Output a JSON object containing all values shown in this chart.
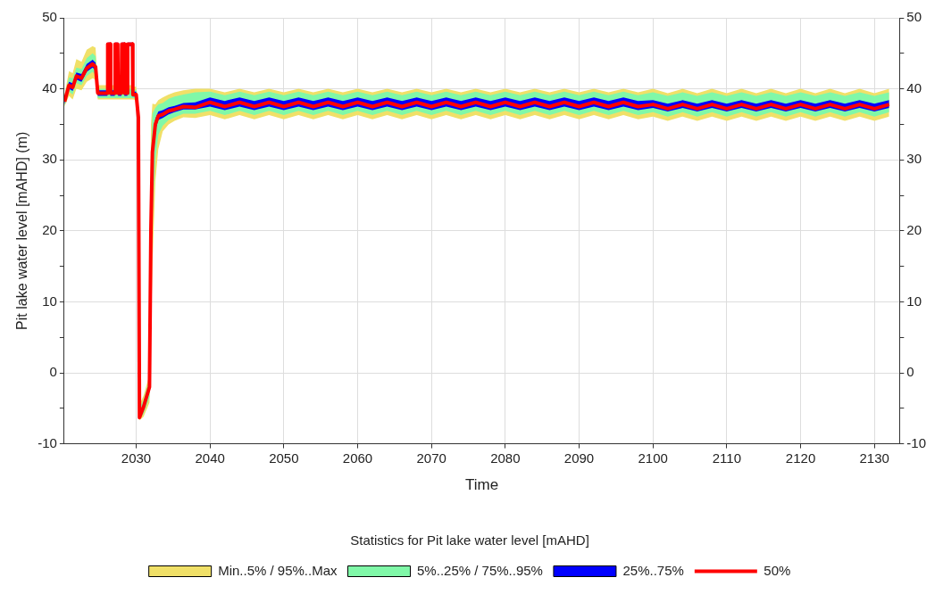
{
  "chart_data": {
    "type": "line",
    "xlabel": "Time",
    "ylabel": "Pit lake water level [mAHD] (m)",
    "legend_title": "Statistics for Pit lake water level [mAHD]",
    "legend": "bottom",
    "grid": true,
    "marker": "none",
    "xlim": [
      2020.25,
      2133.4
    ],
    "xticks": [
      2030,
      2040,
      2050,
      2060,
      2070,
      2080,
      2090,
      2100,
      2110,
      2120,
      2130
    ],
    "ylim": [
      -10,
      50
    ],
    "yticks": [
      -10,
      {
        "value": -5,
        "label": null
      },
      0,
      {
        "value": 5,
        "label": null
      },
      10,
      {
        "value": 15,
        "label": null
      },
      20,
      {
        "value": 25,
        "label": null
      },
      30,
      {
        "value": 35,
        "label": null
      },
      40,
      {
        "value": 45,
        "label": null
      },
      50
    ],
    "y2lim": [
      -10,
      50
    ],
    "y2ticks": [
      -10,
      {
        "value": -5,
        "label": null
      },
      0,
      {
        "value": 5,
        "label": null
      },
      10,
      {
        "value": 15,
        "label": null
      },
      20,
      {
        "value": 25,
        "label": null
      },
      30,
      {
        "value": 35,
        "label": null
      },
      40,
      {
        "value": 45,
        "label": null
      },
      50
    ],
    "x": [
      2020.3,
      2020.9,
      2021.4,
      2021.9,
      2022.6,
      2023.3,
      2024.1,
      2024.5,
      2024.8,
      2025.5,
      2026.1,
      2026.15,
      2026.5,
      2026.55,
      2027.1,
      2027.15,
      2027.5,
      2027.55,
      2028.0,
      2028.05,
      2028.4,
      2028.45,
      2028.8,
      2028.85,
      2029.5,
      2029.55,
      2030.0,
      2030.3,
      2030.45,
      2031.0,
      2031.8,
      2032.0,
      2032.2,
      2032.6,
      2033.0,
      2033.6,
      2034.4,
      2035.2,
      2036.4,
      2038.0,
      2040,
      2042,
      2044,
      2046,
      2048,
      2050,
      2052,
      2054,
      2056,
      2058,
      2060,
      2062,
      2064,
      2066,
      2068,
      2070,
      2072,
      2074,
      2076,
      2078,
      2080,
      2082,
      2084,
      2086,
      2088,
      2090,
      2092,
      2094,
      2096,
      2098,
      2100,
      2102,
      2104,
      2106,
      2108,
      2110,
      2112,
      2114,
      2116,
      2118,
      2120,
      2122,
      2124,
      2126,
      2128,
      2130,
      2132
    ],
    "series": [
      {
        "name": "Min..5% / 95%..Max",
        "type": "area",
        "color": "#f0e068",
        "values": [
          null,
          null,
          null,
          null,
          null,
          null,
          null,
          null,
          null,
          null,
          null,
          null,
          null,
          null,
          null,
          null,
          null,
          null,
          null,
          null,
          null,
          null,
          null,
          null,
          null,
          null,
          null,
          null,
          null,
          null,
          null,
          null,
          null,
          null,
          null,
          null,
          null,
          null,
          null,
          null,
          null,
          null,
          null,
          null,
          null,
          null,
          null,
          null,
          null,
          null,
          null,
          null,
          null,
          null,
          null,
          null,
          null,
          null,
          null,
          null,
          null,
          null,
          null,
          null,
          null,
          null,
          null,
          null,
          null,
          null,
          null,
          null,
          null,
          null,
          null,
          null,
          null,
          null,
          null,
          null,
          null,
          null,
          null,
          null,
          null,
          null,
          null
        ],
        "lower": [
          37.5,
          39.0,
          38.5,
          40.0,
          39.8,
          41.0,
          41.5,
          41.3,
          38.5,
          38.5,
          38.5,
          38.5,
          38.5,
          38.5,
          38.5,
          38.5,
          38.5,
          38.5,
          38.5,
          38.5,
          38.5,
          38.5,
          38.5,
          38.5,
          38.5,
          38.5,
          38.4,
          34.8,
          -6.7,
          -6.2,
          -4.2,
          5,
          15,
          27,
          31.5,
          34,
          35,
          35.5,
          36.0,
          35.9,
          36.3,
          35.7,
          36.3,
          35.7,
          36.3,
          35.7,
          36.3,
          35.7,
          36.3,
          35.7,
          36.3,
          35.7,
          36.3,
          35.7,
          36.3,
          35.7,
          36.3,
          35.7,
          36.3,
          35.7,
          36.3,
          35.7,
          36.3,
          35.7,
          36.3,
          35.7,
          36.3,
          35.7,
          36.3,
          35.7,
          36.1,
          35.5,
          36.1,
          35.5,
          36.1,
          35.5,
          36.1,
          35.5,
          36.1,
          35.5,
          36.1,
          35.5,
          36.1,
          35.5,
          36.1,
          35.5,
          36.1
        ],
        "upper": [
          39.2,
          42.5,
          42.2,
          44.2,
          43.8,
          45.5,
          46.0,
          45.8,
          40.5,
          40.5,
          40.5,
          40.5,
          40.5,
          40.5,
          40.5,
          40.5,
          40.5,
          40.5,
          40.5,
          40.5,
          40.5,
          40.5,
          40.5,
          40.5,
          40.5,
          40.3,
          40.3,
          38,
          -4.5,
          -3.2,
          -0.3,
          35,
          37.9,
          37.8,
          38.4,
          38.8,
          39.2,
          39.5,
          39.8,
          40.0,
          40.0,
          39.5,
          40.0,
          39.5,
          40.0,
          39.5,
          40.0,
          39.5,
          40.0,
          39.5,
          40.0,
          39.5,
          40.0,
          39.5,
          40.0,
          39.5,
          40.0,
          39.5,
          40.0,
          39.5,
          40.0,
          39.5,
          40.0,
          39.5,
          40.0,
          39.5,
          40.0,
          39.5,
          40.0,
          39.5,
          40.0,
          39.4,
          40.0,
          39.4,
          40.0,
          39.4,
          40.0,
          39.4,
          40.0,
          39.4,
          40.0,
          39.4,
          40.0,
          39.4,
          40.0,
          39.4,
          40.0
        ]
      },
      {
        "name": "5%..25% / 75%..95%",
        "type": "area",
        "color": "#80f8a8",
        "values": [
          null,
          null,
          null,
          null,
          null,
          null,
          null,
          null,
          null,
          null,
          null,
          null,
          null,
          null,
          null,
          null,
          null,
          null,
          null,
          null,
          null,
          null,
          null,
          null,
          null,
          null,
          null,
          null,
          null,
          null,
          null,
          null,
          null,
          null,
          null,
          null,
          null,
          null,
          null,
          null,
          null,
          null,
          null,
          null,
          null,
          null,
          null,
          null,
          null,
          null,
          null,
          null,
          null,
          null,
          null,
          null,
          null,
          null,
          null,
          null,
          null,
          null,
          null,
          null,
          null,
          null,
          null,
          null,
          null,
          null,
          null,
          null,
          null,
          null,
          null,
          null,
          null,
          null,
          null,
          null,
          null,
          null,
          null,
          null,
          null,
          null,
          null
        ],
        "lower": [
          37.6,
          39.6,
          39.2,
          40.8,
          40.5,
          41.8,
          42.4,
          42.0,
          38.7,
          38.7,
          38.7,
          38.7,
          38.7,
          38.7,
          38.7,
          38.7,
          38.7,
          38.7,
          38.7,
          38.7,
          38.7,
          38.7,
          38.7,
          38.7,
          38.7,
          38.7,
          38.6,
          35.2,
          -6.5,
          -5.8,
          -3.5,
          10,
          22,
          30,
          33.5,
          34.8,
          35.6,
          36.0,
          36.5,
          36.5,
          36.9,
          36.3,
          36.9,
          36.3,
          36.9,
          36.3,
          36.9,
          36.3,
          36.9,
          36.3,
          36.9,
          36.3,
          36.9,
          36.3,
          36.9,
          36.3,
          36.9,
          36.3,
          36.9,
          36.3,
          36.9,
          36.3,
          36.9,
          36.3,
          36.9,
          36.3,
          36.9,
          36.3,
          36.9,
          36.3,
          36.7,
          36.1,
          36.7,
          36.1,
          36.7,
          36.1,
          36.7,
          36.1,
          36.7,
          36.1,
          36.7,
          36.1,
          36.7,
          36.1,
          36.7,
          36.1,
          36.7
        ],
        "upper": [
          39.0,
          41.6,
          41.5,
          43.0,
          42.8,
          44.3,
          45.0,
          44.6,
          40.0,
          40.0,
          40.0,
          40.0,
          40.0,
          40.0,
          40.0,
          40.0,
          40.0,
          40.0,
          40.0,
          40.0,
          40.0,
          40.0,
          40.0,
          40.0,
          40.0,
          39.9,
          39.9,
          37.5,
          -5.0,
          -3.8,
          -0.8,
          30,
          36.5,
          37.3,
          37.8,
          38.0,
          38.6,
          38.9,
          39.2,
          39.5,
          39.6,
          39.1,
          39.6,
          39.1,
          39.6,
          39.1,
          39.6,
          39.1,
          39.6,
          39.1,
          39.6,
          39.1,
          39.6,
          39.1,
          39.6,
          39.1,
          39.6,
          39.1,
          39.6,
          39.1,
          39.6,
          39.1,
          39.6,
          39.1,
          39.6,
          39.1,
          39.6,
          39.1,
          39.6,
          39.1,
          39.5,
          39.0,
          39.5,
          39.0,
          39.5,
          39.0,
          39.5,
          39.0,
          39.5,
          39.0,
          39.5,
          39.0,
          39.5,
          39.0,
          39.5,
          39.0,
          39.5
        ]
      },
      {
        "name": "25%..75%",
        "type": "area",
        "color": "#0000ff",
        "values": [
          null,
          null,
          null,
          null,
          null,
          null,
          null,
          null,
          null,
          null,
          null,
          null,
          null,
          null,
          null,
          null,
          null,
          null,
          null,
          null,
          null,
          null,
          null,
          null,
          null,
          null,
          null,
          null,
          null,
          null,
          null,
          null,
          null,
          null,
          null,
          null,
          null,
          null,
          null,
          null,
          null,
          null,
          null,
          null,
          null,
          null,
          null,
          null,
          null,
          null,
          null,
          null,
          null,
          null,
          null,
          null,
          null,
          null,
          null,
          null,
          null,
          null,
          null,
          null,
          null,
          null,
          null,
          null,
          null,
          null,
          null,
          null,
          null,
          null,
          null,
          null,
          null,
          null,
          null,
          null,
          null,
          null,
          null,
          null,
          null,
          null,
          null
        ],
        "lower": [
          37.8,
          40.0,
          39.7,
          41.3,
          41.0,
          42.4,
          43.0,
          42.6,
          39.0,
          39.0,
          39.0,
          46.0,
          46.0,
          39.0,
          39.0,
          46.0,
          46.0,
          39.0,
          39.0,
          46.0,
          46.0,
          39.0,
          39.0,
          46.0,
          46.0,
          38.9,
          38.9,
          35.6,
          -6.5,
          -5.2,
          -2.6,
          18,
          29.5,
          34.2,
          35.6,
          35.9,
          36.4,
          36.7,
          37.1,
          37.1,
          37.5,
          37.0,
          37.5,
          37.0,
          37.5,
          37.0,
          37.5,
          37.0,
          37.5,
          37.0,
          37.5,
          37.0,
          37.5,
          37.0,
          37.5,
          37.0,
          37.5,
          37.0,
          37.5,
          37.0,
          37.5,
          37.0,
          37.5,
          37.0,
          37.5,
          37.0,
          37.5,
          37.0,
          37.5,
          37.0,
          37.3,
          36.8,
          37.3,
          36.8,
          37.3,
          36.8,
          37.3,
          36.8,
          37.3,
          36.8,
          37.3,
          36.8,
          37.3,
          36.8,
          37.3,
          36.8,
          37.3
        ],
        "upper": [
          38.6,
          41.0,
          40.8,
          42.3,
          42.1,
          43.5,
          44.1,
          43.7,
          39.8,
          39.8,
          39.8,
          46.5,
          46.5,
          39.8,
          39.8,
          46.5,
          46.5,
          39.8,
          39.8,
          46.5,
          46.5,
          39.8,
          39.8,
          46.5,
          46.5,
          39.6,
          39.6,
          36.4,
          -5.8,
          -4.3,
          -1.5,
          22,
          32.5,
          35.8,
          36.8,
          37.0,
          37.4,
          37.6,
          38.0,
          38.1,
          38.8,
          38.3,
          38.8,
          38.3,
          38.8,
          38.3,
          38.8,
          38.3,
          38.8,
          38.3,
          38.8,
          38.3,
          38.8,
          38.3,
          38.8,
          38.3,
          38.8,
          38.3,
          38.8,
          38.3,
          38.8,
          38.3,
          38.8,
          38.3,
          38.8,
          38.3,
          38.8,
          38.3,
          38.8,
          38.3,
          38.4,
          37.9,
          38.4,
          37.9,
          38.4,
          37.9,
          38.4,
          37.9,
          38.4,
          37.9,
          38.4,
          37.9,
          38.4,
          37.9,
          38.4,
          37.9,
          38.4
        ]
      },
      {
        "name": "50%",
        "type": "line",
        "color": "#ff0000",
        "line_style": "solid",
        "values": [
          38.2,
          40.5,
          40.2,
          41.8,
          41.5,
          42.9,
          43.5,
          43.1,
          39.4,
          39.4,
          39.4,
          46.3,
          46.3,
          39.4,
          39.4,
          46.3,
          46.3,
          39.4,
          39.4,
          46.3,
          46.3,
          39.4,
          39.4,
          46.3,
          46.3,
          39.2,
          39.2,
          36,
          -6.3,
          -4.8,
          -2.0,
          20.3,
          31.1,
          35.0,
          36.2,
          36.4,
          36.9,
          37.1,
          37.5,
          37.4,
          38.1,
          37.5,
          38.1,
          37.5,
          38.1,
          37.5,
          38.1,
          37.5,
          38.1,
          37.5,
          38.1,
          37.5,
          38.1,
          37.5,
          38.1,
          37.5,
          38.1,
          37.5,
          38.1,
          37.5,
          38.1,
          37.5,
          38.1,
          37.5,
          38.1,
          37.5,
          38.1,
          37.5,
          38.1,
          37.5,
          37.8,
          37.2,
          37.8,
          37.2,
          37.8,
          37.2,
          37.8,
          37.2,
          37.8,
          37.2,
          37.8,
          37.2,
          37.8,
          37.2,
          37.8,
          37.2,
          37.8
        ]
      }
    ]
  }
}
